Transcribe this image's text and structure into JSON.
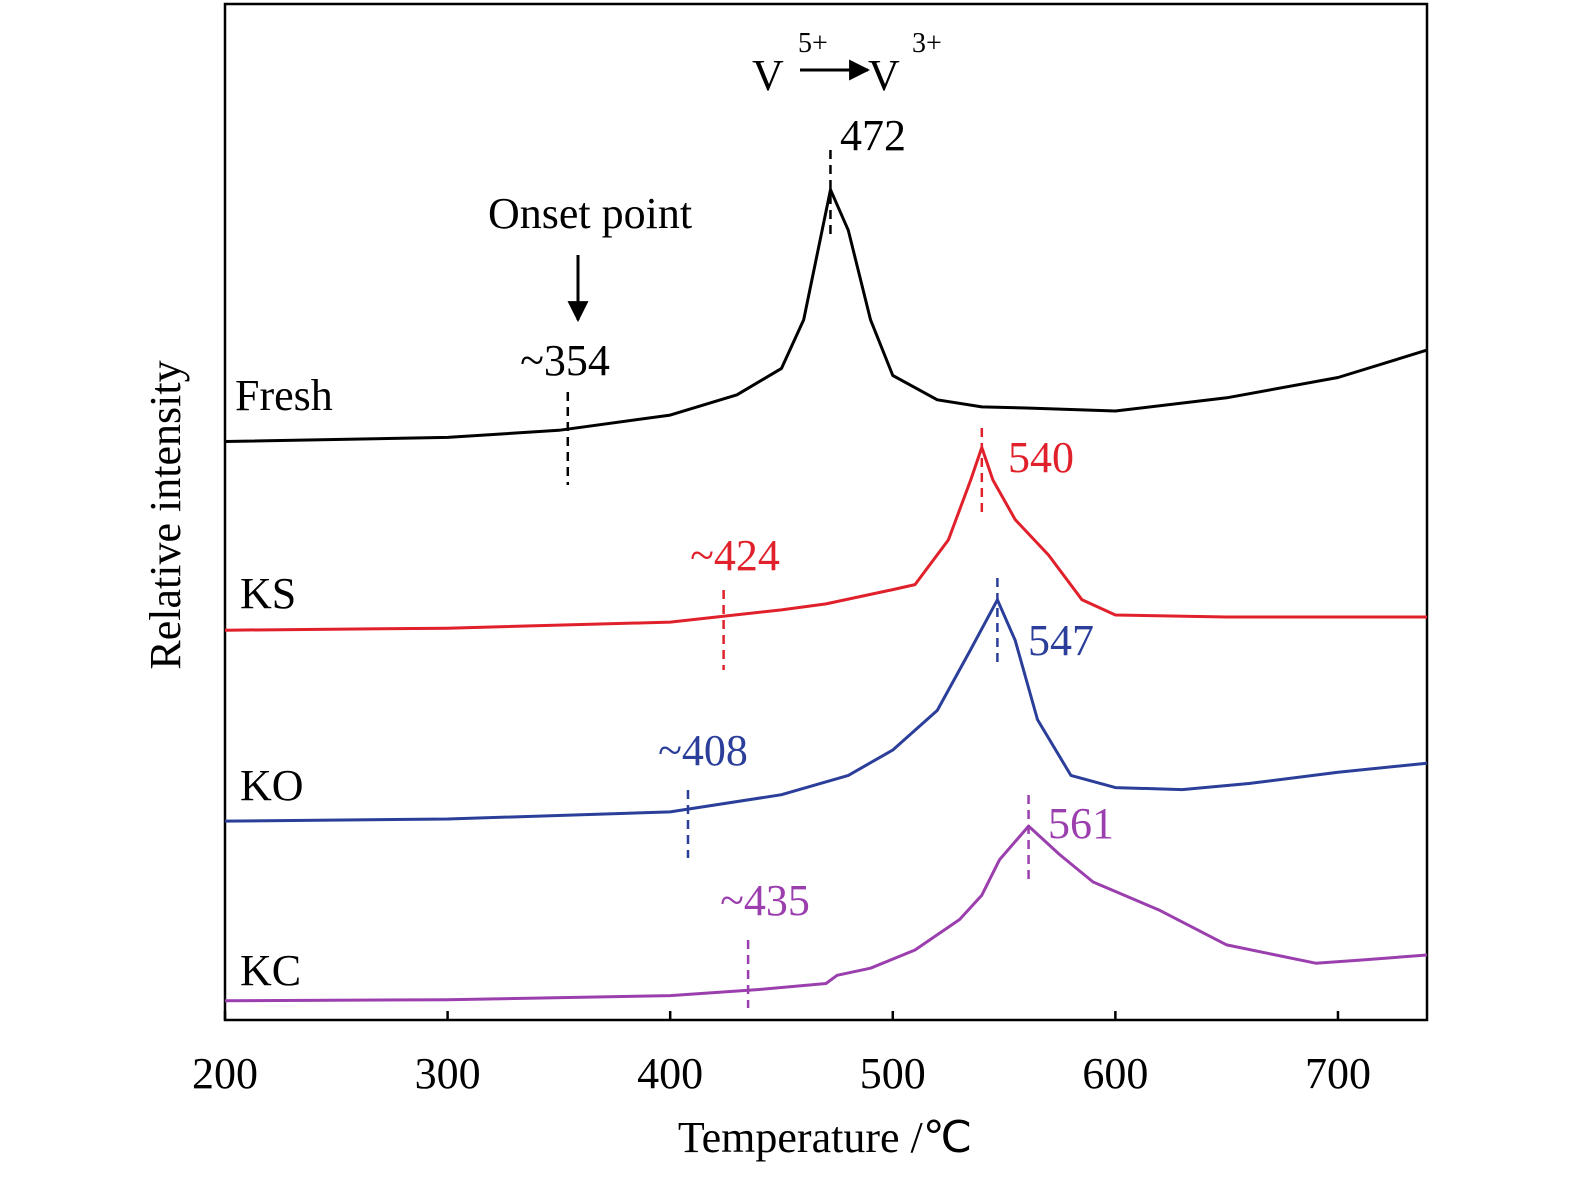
{
  "chart_data": {
    "type": "line",
    "xlabel": "Temperature /℃",
    "ylabel": "Relative intensity",
    "xlim": [
      200,
      740
    ],
    "ylim": [
      0,
      100
    ],
    "xticks": [
      200,
      300,
      400,
      500,
      600,
      700
    ],
    "reaction": {
      "from": "V",
      "from_charge": "5+",
      "to": "V",
      "to_charge": "3+"
    },
    "onset_note": "Onset point",
    "series": [
      {
        "name": "Fresh",
        "color": "#000000",
        "peak": 472,
        "onset": 354,
        "onset_label": "~354",
        "x": [
          200,
          300,
          350,
          400,
          430,
          450,
          460,
          472,
          480,
          490,
          500,
          520,
          540,
          560,
          600,
          650,
          700,
          740
        ],
        "values": [
          57.0,
          57.4,
          58.1,
          59.6,
          61.6,
          64.2,
          69.0,
          81.8,
          77.8,
          69.0,
          63.5,
          61.1,
          60.4,
          60.3,
          60.0,
          61.3,
          63.3,
          66.0
        ]
      },
      {
        "name": "KS",
        "color": "#e0202a",
        "peak": 540,
        "onset": 424,
        "onset_label": "~424",
        "x": [
          200,
          300,
          400,
          450,
          470,
          500,
          510,
          525,
          535,
          540,
          545,
          555,
          570,
          585,
          600,
          650,
          740
        ],
        "values": [
          38.4,
          38.6,
          39.2,
          40.4,
          41.0,
          42.4,
          42.9,
          47.3,
          53.2,
          56.4,
          53.2,
          49.3,
          45.8,
          41.4,
          39.9,
          39.7,
          39.7
        ]
      },
      {
        "name": "KO",
        "color": "#2b3f9a",
        "peak": 547,
        "onset": 408,
        "onset_label": "~408",
        "x": [
          200,
          300,
          400,
          450,
          480,
          500,
          520,
          535,
          547,
          555,
          565,
          580,
          600,
          630,
          660,
          700,
          740
        ],
        "values": [
          19.6,
          19.8,
          20.5,
          22.2,
          24.1,
          26.6,
          30.5,
          36.5,
          41.4,
          37.4,
          29.6,
          24.1,
          22.9,
          22.7,
          23.3,
          24.4,
          25.3
        ]
      },
      {
        "name": "KC",
        "color": "#9b3fae",
        "peak": 561,
        "onset": 435,
        "onset_label": "~435",
        "x": [
          200,
          300,
          400,
          440,
          470,
          475,
          490,
          510,
          530,
          540,
          548,
          561,
          575,
          590,
          620,
          650,
          690,
          710,
          740
        ],
        "values": [
          1.9,
          2.0,
          2.4,
          3.0,
          3.6,
          4.4,
          5.1,
          6.9,
          9.9,
          12.3,
          15.8,
          19.1,
          16.3,
          13.6,
          10.8,
          7.4,
          5.6,
          5.9,
          6.4
        ]
      }
    ]
  }
}
